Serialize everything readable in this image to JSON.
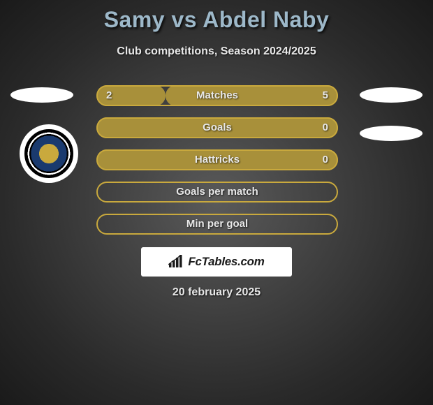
{
  "title": "Samy vs Abdel Naby",
  "subtitle": "Club competitions, Season 2024/2025",
  "date": "20 february 2025",
  "brand": "FcTables.com",
  "colors": {
    "bar_fill": "#a8903a",
    "bar_border": "#c9a93d",
    "title_color": "#9db8c9",
    "text_color": "#e8e8e8",
    "bg_inner": "#5a5a5a",
    "bg_outer": "#1a1a1a"
  },
  "bars": [
    {
      "label": "Matches",
      "left": "2",
      "right": "5",
      "left_pct": 28.6,
      "right_pct": 71.4
    },
    {
      "label": "Goals",
      "left": null,
      "right": "0",
      "left_pct": 100,
      "right_pct": 0
    },
    {
      "label": "Hattricks",
      "left": null,
      "right": "0",
      "left_pct": 100,
      "right_pct": 0
    },
    {
      "label": "Goals per match",
      "left": null,
      "right": null,
      "left_pct": 0,
      "right_pct": 0
    },
    {
      "label": "Min per goal",
      "left": null,
      "right": null,
      "left_pct": 0,
      "right_pct": 0
    }
  ]
}
